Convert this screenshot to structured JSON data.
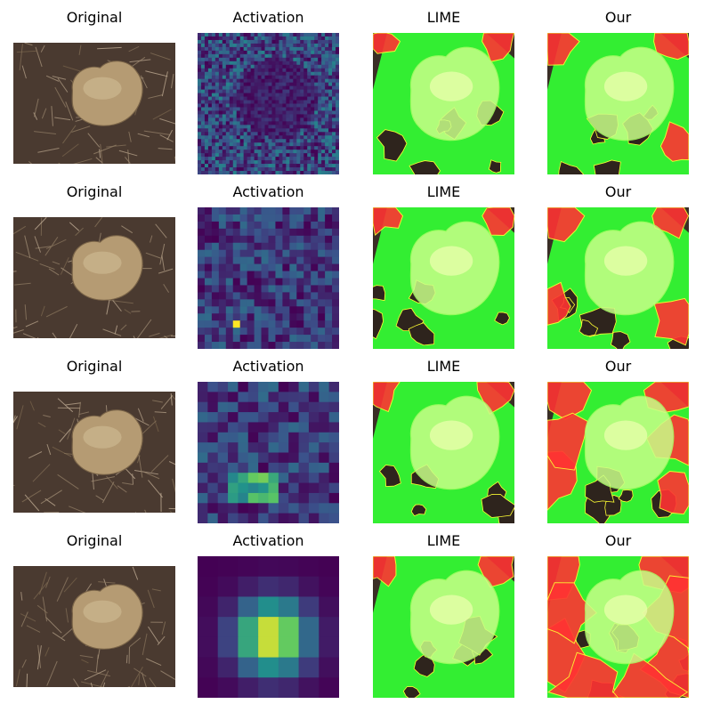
{
  "figure": {
    "column_titles": [
      "Original",
      "Activation",
      "LIME",
      "Our"
    ],
    "rows": [
      {
        "activation_grid": 40,
        "our_red": 0.3,
        "lime_red": 0.15
      },
      {
        "activation_grid": 20,
        "our_red": 0.4,
        "lime_red": 0.18
      },
      {
        "activation_grid": 14,
        "our_red": 0.55,
        "lime_red": 0.2
      },
      {
        "activation_grid": 7,
        "our_red": 0.75,
        "lime_red": 0.22
      }
    ]
  },
  "colors": {
    "soil": "#4a3a30",
    "potato": "#b59b73",
    "overlay_green": "#33ff33",
    "overlay_red": "#ff3333",
    "contour": "#ffff33"
  }
}
